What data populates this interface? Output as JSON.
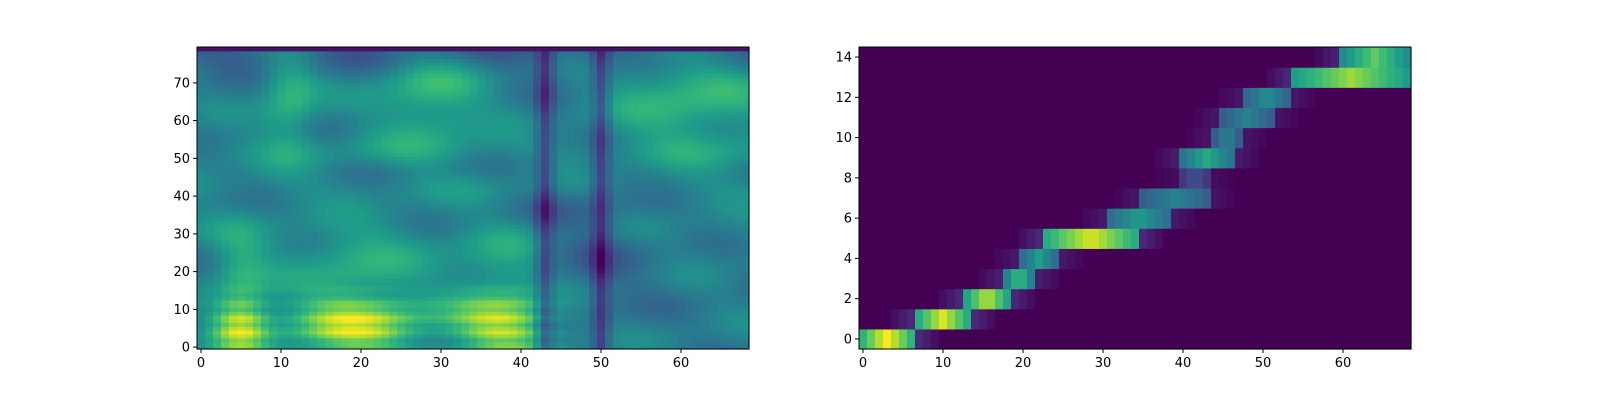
{
  "chart_data": [
    {
      "type": "heatmap",
      "title": "",
      "xlabel": "",
      "ylabel": "",
      "colormap": "viridis",
      "x_extent": [
        -0.5,
        68.5
      ],
      "y_extent": [
        -0.5,
        79.5
      ],
      "x_ticks": [
        0,
        10,
        20,
        30,
        40,
        50,
        60
      ],
      "y_ticks": [
        0,
        10,
        20,
        30,
        40,
        50,
        60,
        70
      ],
      "n_cols": 69,
      "n_rows": 80,
      "description_bands": {
        "low_freq_bright_columns": [
          [
            3,
            7
          ],
          [
            14,
            25
          ],
          [
            34,
            42
          ]
        ],
        "mid_high_bright_columns": [
          [
            9,
            13
          ],
          [
            24,
            33
          ],
          [
            54,
            68
          ]
        ],
        "dark_vertical_lines": [
          43,
          50
        ]
      }
    },
    {
      "type": "heatmap",
      "title": "",
      "xlabel": "",
      "ylabel": "",
      "colormap": "viridis",
      "x_extent": [
        -0.5,
        68.5
      ],
      "y_extent": [
        -0.5,
        14.5
      ],
      "x_ticks": [
        0,
        10,
        20,
        30,
        40,
        50,
        60
      ],
      "y_ticks": [
        0,
        2,
        4,
        6,
        8,
        10,
        12,
        14
      ],
      "n_cols": 69,
      "n_rows": 15,
      "alignment_path": [
        {
          "row": 0,
          "x_start": 0,
          "x_end": 6,
          "peak": 1.0
        },
        {
          "row": 1,
          "x_start": 7,
          "x_end": 13,
          "peak": 0.95
        },
        {
          "row": 2,
          "x_start": 13,
          "x_end": 18,
          "peak": 0.9
        },
        {
          "row": 3,
          "x_start": 18,
          "x_end": 21,
          "peak": 0.7
        },
        {
          "row": 4,
          "x_start": 20,
          "x_end": 24,
          "peak": 0.55
        },
        {
          "row": 5,
          "x_start": 23,
          "x_end": 34,
          "peak": 0.95
        },
        {
          "row": 6,
          "x_start": 31,
          "x_end": 38,
          "peak": 0.55
        },
        {
          "row": 7,
          "x_start": 35,
          "x_end": 43,
          "peak": 0.45
        },
        {
          "row": 8,
          "x_start": 40,
          "x_end": 43,
          "peak": 0.25
        },
        {
          "row": 9,
          "x_start": 40,
          "x_end": 46,
          "peak": 0.6
        },
        {
          "row": 10,
          "x_start": 44,
          "x_end": 47,
          "peak": 0.45
        },
        {
          "row": 11,
          "x_start": 45,
          "x_end": 51,
          "peak": 0.45
        },
        {
          "row": 12,
          "x_start": 48,
          "x_end": 53,
          "peak": 0.5
        },
        {
          "row": 13,
          "x_start": 54,
          "x_end": 68,
          "peak": 0.85
        },
        {
          "row": 14,
          "x_start": 60,
          "x_end": 68,
          "peak": 0.75
        }
      ]
    }
  ]
}
